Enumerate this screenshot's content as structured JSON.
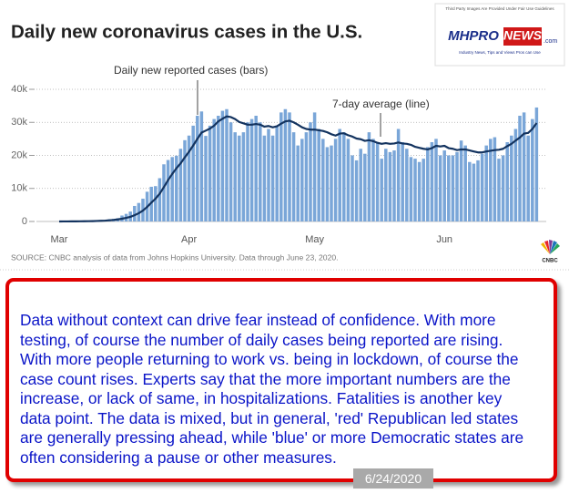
{
  "chart_data": {
    "type": "bar",
    "title": "Daily new coronavirus cases in the U.S.",
    "categories": [
      "Mar",
      null,
      null,
      null,
      null,
      null,
      null,
      null,
      null,
      null,
      null,
      null,
      null,
      null,
      null,
      null,
      null,
      null,
      null,
      null,
      null,
      null,
      null,
      null,
      null,
      null,
      null,
      null,
      null,
      null,
      null,
      "Apr",
      null,
      null,
      null,
      null,
      null,
      null,
      null,
      null,
      null,
      null,
      null,
      null,
      null,
      null,
      null,
      null,
      null,
      null,
      null,
      null,
      null,
      null,
      null,
      null,
      null,
      null,
      null,
      null,
      null,
      "May",
      null,
      null,
      null,
      null,
      null,
      null,
      null,
      null,
      null,
      null,
      null,
      null,
      null,
      null,
      null,
      null,
      null,
      null,
      null,
      null,
      null,
      null,
      null,
      null,
      null,
      null,
      null,
      null,
      null,
      null,
      "Jun",
      null,
      null,
      null,
      null,
      null,
      null,
      null,
      null,
      null,
      null,
      null,
      null,
      null,
      null,
      null,
      null,
      null,
      null,
      null,
      null,
      null,
      null
    ],
    "series": [
      {
        "type": "bar",
        "color": "#7aa6d8",
        "values": [
          20,
          25,
          30,
          50,
          70,
          90,
          120,
          120,
          200,
          290,
          400,
          450,
          700,
          800,
          1000,
          1800,
          2300,
          3000,
          4700,
          5600,
          6900,
          9000,
          10500,
          10700,
          13100,
          17300,
          18600,
          19500,
          19900,
          22000,
          24600,
          26000,
          29000,
          32000,
          33300,
          25900,
          29000,
          31000,
          32000,
          33500,
          34000,
          30000,
          27000,
          26000,
          27000,
          30000,
          31000,
          32000,
          30000,
          26000,
          28000,
          26000,
          29000,
          33000,
          34000,
          33000,
          27000,
          23000,
          25000,
          27000,
          30000,
          33000,
          28000,
          25000,
          22500,
          23000,
          25000,
          28000,
          27000,
          25000,
          20000,
          18500,
          22000,
          20500,
          27000,
          25000,
          24000,
          19000,
          22000,
          21000,
          21500,
          28000,
          24000,
          22000,
          19500,
          19000,
          18000,
          19000,
          22500,
          24000,
          25000,
          20000,
          21500,
          20000,
          20000,
          21000,
          24500,
          23000,
          18000,
          17500,
          18500,
          20500,
          23000,
          25000,
          25500,
          19000,
          20000,
          24000,
          26000,
          28000,
          32000,
          33000,
          26000,
          31000,
          34500
        ]
      },
      {
        "type": "line",
        "color": "#13335f",
        "values": [
          10,
          15,
          20,
          30,
          40,
          55,
          70,
          85,
          110,
          150,
          200,
          260,
          360,
          470,
          620,
          830,
          1080,
          1400,
          1900,
          2500,
          3300,
          4400,
          5700,
          6900,
          8400,
          10400,
          12500,
          14400,
          16100,
          17600,
          19400,
          21100,
          23000,
          25000,
          26900,
          27500,
          28100,
          29000,
          30300,
          31100,
          31800,
          31600,
          31000,
          30100,
          29700,
          29300,
          29300,
          29500,
          29300,
          28700,
          28900,
          28500,
          28800,
          29600,
          30300,
          30500,
          30000,
          29300,
          28500,
          28000,
          27800,
          27800,
          27600,
          27400,
          27000,
          26400,
          26000,
          26600,
          26700,
          26100,
          25700,
          25100,
          24900,
          24400,
          24600,
          24300,
          23800,
          23500,
          23700,
          23500,
          23600,
          23900,
          23600,
          23500,
          23200,
          22600,
          22300,
          22000,
          21800,
          22200,
          22900,
          22700,
          22900,
          22200,
          22000,
          21600,
          21800,
          21800,
          21500,
          21200,
          20900,
          20900,
          21200,
          21400,
          21600,
          21700,
          22000,
          22800,
          23500,
          24500,
          25400,
          26600,
          26800,
          28000,
          29800
        ]
      }
    ],
    "ylim": [
      0,
      40000
    ],
    "yticks": [
      0,
      {
        "value": 10000,
        "label": "10k"
      },
      {
        "value": 20000,
        "label": "20k"
      },
      {
        "value": 30000,
        "label": "30k"
      },
      {
        "value": 40000,
        "label": "40k"
      }
    ],
    "grid": true,
    "annotations": [
      "Daily new reported cases (bars)",
      "7-day average (line)"
    ],
    "source": "SOURCE: CNBC analysis of data from Johns Hopkins University. Data through June 23, 2020."
  },
  "logo": {
    "notice": "Third Party Images Are Provided Under Fair Use Guidelines",
    "brand_a": "MHPRO",
    "brand_b": "NEWS",
    "suffix": ".com",
    "tagline": "Industry News, Tips and Views Pros can Use"
  },
  "network_logo": "CNBC",
  "commentary": {
    "lines": [
      "Data without context can drive fear instead of confidence. With more",
      "testing, of course the number of daily cases being reported are rising.",
      "With more people returning to work vs. being in lockdown, of course the",
      "case count rises. Experts say that the more important numbers are the",
      "increase, or lack of same, in hospitalizations. Fatalities is another key",
      "data point. The data is mixed, but in general, 'red' Republican led states",
      "are generally pressing ahead, while 'blue' or more Democratic states are",
      "often considering a pause or other measures."
    ],
    "date": "6/24/2020"
  }
}
